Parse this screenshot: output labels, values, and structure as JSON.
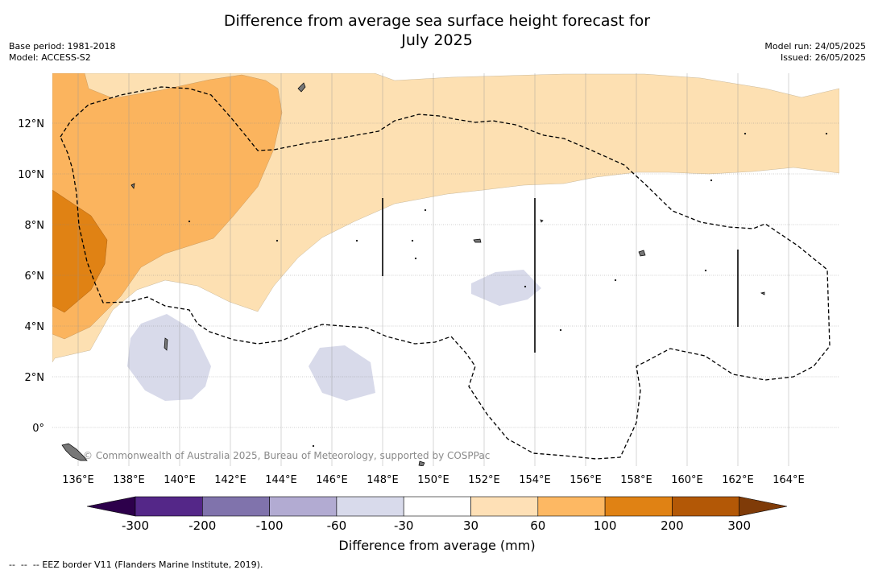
{
  "header": {
    "title_line1": "Difference from average sea surface height forecast for",
    "title_line2": "July 2025",
    "base_period": "Base period: 1981-2018",
    "model": "Model: ACCESS-S2",
    "model_run": "Model run: 24/05/2025",
    "issued": "Issued: 26/05/2025"
  },
  "map": {
    "lat_ticks": [
      "12°N",
      "10°N",
      "8°N",
      "6°N",
      "4°N",
      "2°N",
      "0°"
    ],
    "lat_values": [
      12,
      10,
      8,
      6,
      4,
      2,
      0
    ],
    "lon_ticks": [
      "136°E",
      "138°E",
      "140°E",
      "142°E",
      "144°E",
      "146°E",
      "148°E",
      "150°E",
      "152°E",
      "154°E",
      "156°E",
      "158°E",
      "160°E",
      "162°E",
      "164°E"
    ],
    "lon_values": [
      136,
      138,
      140,
      142,
      144,
      146,
      148,
      150,
      152,
      154,
      156,
      158,
      160,
      162,
      164
    ],
    "lon_range": [
      135,
      166
    ],
    "lat_range": [
      -1.5,
      14
    ],
    "credit": "© Commonwealth of Australia 2025, Bureau of Meteorology, supported by COSPPac",
    "legend_line": "EEZ border V11 (Flanders Marine Institute, 2019).",
    "colors": {
      "pos_30_60": "#fde0b2",
      "pos_60_100": "#fbb45e",
      "pos_100_200": "#e08214",
      "neg_30_60": "#d8daea",
      "coast": "#000000"
    }
  },
  "colorbar": {
    "labels": [
      "-300",
      "-200",
      "-100",
      "-60",
      "-30",
      "30",
      "60",
      "100",
      "200",
      "300"
    ],
    "colors": [
      "#2d004b",
      "#542788",
      "#8073ac",
      "#b2abd2",
      "#d8daeb",
      "#ffffff",
      "#fee0b6",
      "#fdb863",
      "#e08214",
      "#b35806",
      "#7f3b08"
    ],
    "title": "Difference from average (mm)"
  }
}
